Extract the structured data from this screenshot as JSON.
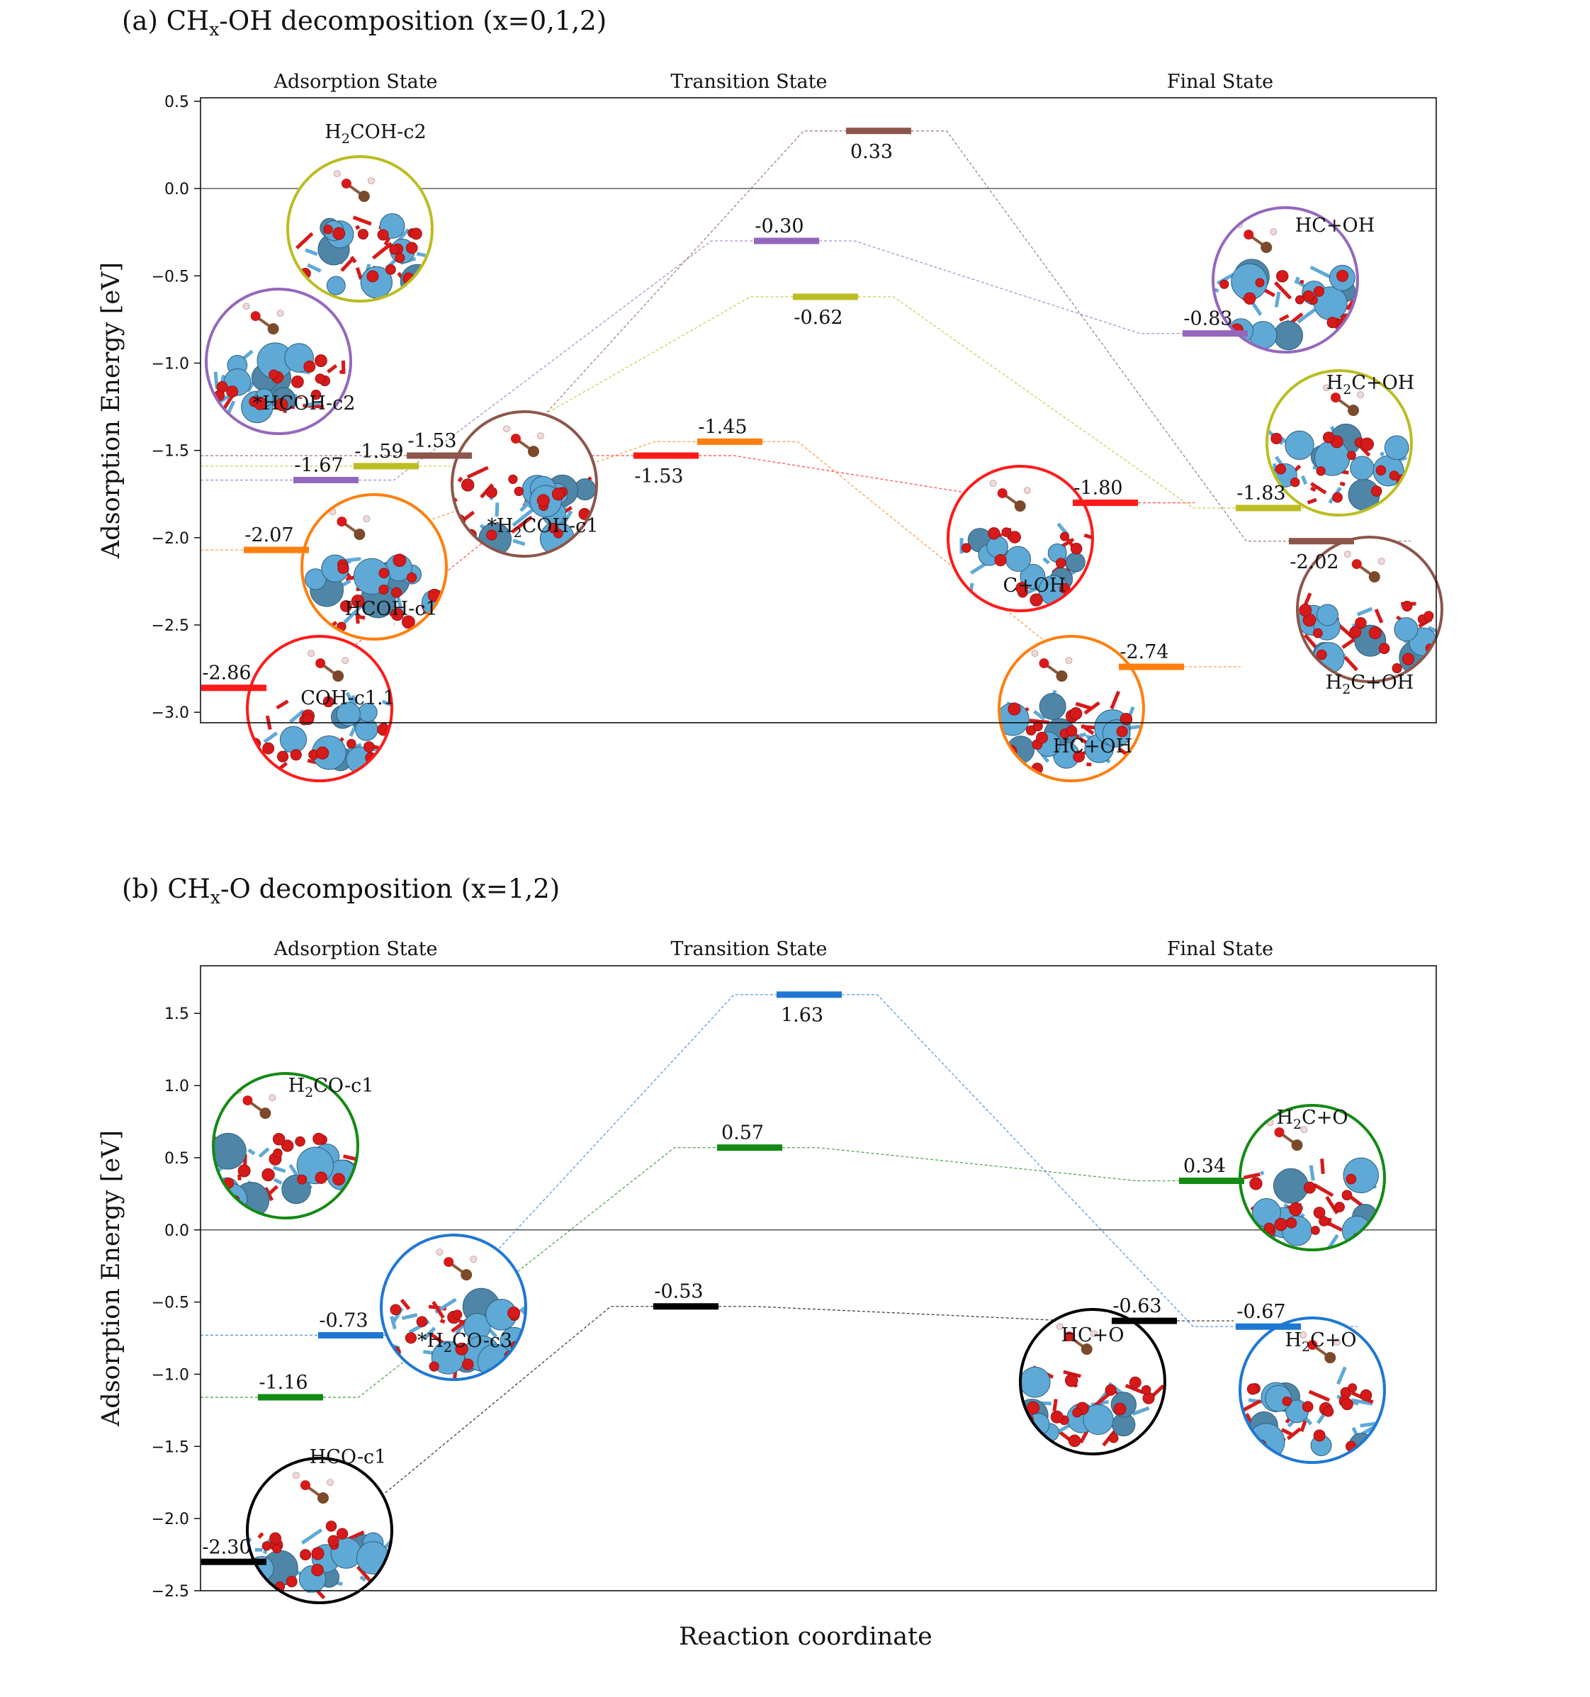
{
  "xlabel": "Reaction coordinate",
  "colors": {
    "red": "#ff1a1a",
    "orange": "#ff7f0e",
    "purple": "#9467bd",
    "olive": "#bcbd22",
    "brown": "#8c564b",
    "blue": "#1f77d4",
    "green": "#138a13",
    "black": "#000000",
    "atom_metal": "#5fa9d6",
    "atom_o": "#d61a1a",
    "atom_c": "#7a4a2a",
    "atom_h": "#f0d9d9"
  },
  "chart_data": [
    {
      "id": "a",
      "type": "energy_diagram",
      "title": "(a) CHₓ-OH decomposition (x=0,1,2)",
      "title_parts": {
        "pre": "(a) CH",
        "sub": "x",
        "post": "-OH decomposition (x=0,1,2)"
      },
      "ylabel": "Adsorption Energy [eV]",
      "ylim": [
        -3.06,
        0.52
      ],
      "yticks": [
        0.5,
        0.0,
        -0.5,
        -1.0,
        -1.5,
        -2.0,
        -2.5,
        -3.0
      ],
      "ytick_labels": [
        "0.5",
        "0.0",
        "−0.5",
        "−1.0",
        "−1.5",
        "−2.0",
        "−2.5",
        "−3.0"
      ],
      "zero_line": true,
      "state_labels": [
        "Adsorption State",
        "Transition State",
        "Final State"
      ],
      "levels": [
        {
          "id": "a_is_red",
          "stage": "IS",
          "value": -2.86,
          "label": "-2.86",
          "color": "red",
          "slot": 0
        },
        {
          "id": "a_is_orange",
          "stage": "IS",
          "value": -2.07,
          "label": "-2.07",
          "color": "orange",
          "slot": 1
        },
        {
          "id": "a_is_purple",
          "stage": "IS",
          "value": -1.67,
          "label": "-1.67",
          "color": "purple",
          "slot": 2
        },
        {
          "id": "a_is_olive",
          "stage": "IS",
          "value": -1.59,
          "label": "-1.59",
          "color": "olive",
          "slot": 3
        },
        {
          "id": "a_is_brown",
          "stage": "IS",
          "value": -1.53,
          "label": "-1.53",
          "color": "brown",
          "slot": 4
        },
        {
          "id": "a_ts_red",
          "stage": "TS",
          "value": -1.53,
          "label": "-1.53",
          "color": "red",
          "slot": 0,
          "below": true
        },
        {
          "id": "a_ts_orange",
          "stage": "TS",
          "value": -1.45,
          "label": "-1.45",
          "color": "orange",
          "slot": 1
        },
        {
          "id": "a_ts_purple",
          "stage": "TS",
          "value": -0.3,
          "label": "-0.30",
          "color": "purple",
          "slot": 2
        },
        {
          "id": "a_ts_olive",
          "stage": "TS",
          "value": -0.62,
          "label": "-0.62",
          "color": "olive",
          "slot": 3,
          "below": true
        },
        {
          "id": "a_ts_brown",
          "stage": "TS",
          "value": 0.33,
          "label": "0.33",
          "color": "brown",
          "slot": 4,
          "below": true
        },
        {
          "id": "a_fs_red",
          "stage": "FS",
          "value": -1.8,
          "label": "-1.80",
          "color": "red",
          "slot": 0
        },
        {
          "id": "a_fs_orange",
          "stage": "FS",
          "value": -2.74,
          "label": "-2.74",
          "color": "orange",
          "slot": 1
        },
        {
          "id": "a_fs_purple",
          "stage": "FS",
          "value": -0.83,
          "label": "-0.83",
          "color": "purple",
          "slot": 2
        },
        {
          "id": "a_fs_olive",
          "stage": "FS",
          "value": -1.83,
          "label": "-1.83",
          "color": "olive",
          "slot": 3
        },
        {
          "id": "a_fs_brown",
          "stage": "FS",
          "value": -2.02,
          "label": "-2.02",
          "color": "brown",
          "slot": 4,
          "below": true
        }
      ],
      "paths": [
        {
          "color": "red",
          "levels": [
            "a_is_red",
            "a_ts_red",
            "a_fs_red"
          ]
        },
        {
          "color": "orange",
          "levels": [
            "a_is_orange",
            "a_ts_orange",
            "a_fs_orange"
          ]
        },
        {
          "color": "purple",
          "levels": [
            "a_is_purple",
            "a_ts_purple",
            "a_fs_purple"
          ]
        },
        {
          "color": "olive",
          "levels": [
            "a_is_olive",
            "a_ts_olive",
            "a_fs_olive"
          ]
        },
        {
          "color": "brown",
          "levels": [
            "a_is_brown",
            "a_ts_brown",
            "a_fs_brown"
          ]
        }
      ],
      "structures": [
        {
          "id": "a_s1",
          "label": "H₂COH-c2",
          "parts": [
            "H",
            "2",
            "COH-c2"
          ],
          "ring": "olive"
        },
        {
          "id": "a_s2",
          "label": "*HCOH-c2",
          "parts": [
            "*HCOH-c2",
            "",
            ""
          ],
          "ring": "purple"
        },
        {
          "id": "a_s3",
          "label": "HCOH-c1",
          "parts": [
            "HCOH-c1",
            "",
            ""
          ],
          "ring": "orange"
        },
        {
          "id": "a_s4",
          "label": "COH-c1.1",
          "parts": [
            "COH-c1.1",
            "",
            ""
          ],
          "ring": "red"
        },
        {
          "id": "a_s5",
          "label": "*H₂COH-c1",
          "parts": [
            "*H",
            "2",
            "COH-c1"
          ],
          "ring": "brown"
        },
        {
          "id": "a_s6",
          "label": "C+OH",
          "parts": [
            "C+OH",
            "",
            ""
          ],
          "ring": "red"
        },
        {
          "id": "a_s7",
          "label": "HC+OH",
          "parts": [
            "HC+OH",
            "",
            ""
          ],
          "ring": "orange"
        },
        {
          "id": "a_s8",
          "label": "HC+OH",
          "parts": [
            "HC+OH",
            "",
            ""
          ],
          "ring": "purple"
        },
        {
          "id": "a_s9",
          "label": "H₂C+OH",
          "parts": [
            "H",
            "2",
            "C+OH"
          ],
          "ring": "olive"
        },
        {
          "id": "a_s10",
          "label": "H₂C+OH",
          "parts": [
            "H",
            "2",
            "C+OH"
          ],
          "ring": "brown"
        }
      ]
    },
    {
      "id": "b",
      "type": "energy_diagram",
      "title": "(b) CHₓ-O decomposition (x=1,2)",
      "title_parts": {
        "pre": "(b) CH",
        "sub": "x",
        "post": "-O decomposition (x=1,2)"
      },
      "ylabel": "Adsorption Energy [eV]",
      "ylim": [
        -2.5,
        1.83
      ],
      "yticks": [
        1.5,
        1.0,
        0.5,
        0.0,
        -0.5,
        -1.0,
        -1.5,
        -2.0,
        -2.5
      ],
      "ytick_labels": [
        "1.5",
        "1.0",
        "0.5",
        "0.0",
        "−0.5",
        "−1.0",
        "−1.5",
        "−2.0",
        "−2.5"
      ],
      "zero_line": true,
      "state_labels": [
        "Adsorption State",
        "Transition State",
        "Final State"
      ],
      "levels": [
        {
          "id": "b_is_black",
          "stage": "IS",
          "value": -2.3,
          "label": "-2.30",
          "color": "black",
          "slot": 0
        },
        {
          "id": "b_is_green",
          "stage": "IS",
          "value": -1.16,
          "label": "-1.16",
          "color": "green",
          "slot": 2
        },
        {
          "id": "b_is_blue",
          "stage": "IS",
          "value": -0.73,
          "label": "-0.73",
          "color": "blue",
          "slot": 4
        },
        {
          "id": "b_ts_black",
          "stage": "TS",
          "value": -0.53,
          "label": "-0.53",
          "color": "black",
          "slot": 0
        },
        {
          "id": "b_ts_green",
          "stage": "TS",
          "value": 0.57,
          "label": "0.57",
          "color": "green",
          "slot": 2
        },
        {
          "id": "b_ts_blue",
          "stage": "TS",
          "value": 1.63,
          "label": "1.63",
          "color": "blue",
          "slot": 4,
          "below": true
        },
        {
          "id": "b_fs_black",
          "stage": "FS",
          "value": -0.63,
          "label": "-0.63",
          "color": "black",
          "slot": 0
        },
        {
          "id": "b_fs_green",
          "stage": "FS",
          "value": 0.34,
          "label": "0.34",
          "color": "green",
          "slot": 2
        },
        {
          "id": "b_fs_blue",
          "stage": "FS",
          "value": -0.67,
          "label": "-0.67",
          "color": "blue",
          "slot": 4
        }
      ],
      "paths": [
        {
          "color": "black",
          "levels": [
            "b_is_black",
            "b_ts_black",
            "b_fs_black"
          ]
        },
        {
          "color": "green",
          "levels": [
            "b_is_green",
            "b_ts_green",
            "b_fs_green"
          ]
        },
        {
          "color": "blue",
          "levels": [
            "b_is_blue",
            "b_ts_blue",
            "b_fs_blue"
          ]
        }
      ],
      "structures": [
        {
          "id": "b_s1",
          "label": "H₂CO-c1",
          "parts": [
            "H",
            "2",
            "CO-c1"
          ],
          "ring": "green"
        },
        {
          "id": "b_s2",
          "label": "*H₂CO-c3",
          "parts": [
            "*H",
            "2",
            "CO-c3"
          ],
          "ring": "blue"
        },
        {
          "id": "b_s3",
          "label": "HCO-c1",
          "parts": [
            "HCO-c1",
            "",
            ""
          ],
          "ring": "black"
        },
        {
          "id": "b_s4",
          "label": "HC+O",
          "parts": [
            "HC+O",
            "",
            ""
          ],
          "ring": "black"
        },
        {
          "id": "b_s5",
          "label": "H₂C+O",
          "parts": [
            "H",
            "2",
            "C+O"
          ],
          "ring": "green"
        },
        {
          "id": "b_s6",
          "label": "H₂C+O",
          "parts": [
            "H",
            "2",
            "C+O"
          ],
          "ring": "blue"
        }
      ]
    }
  ]
}
